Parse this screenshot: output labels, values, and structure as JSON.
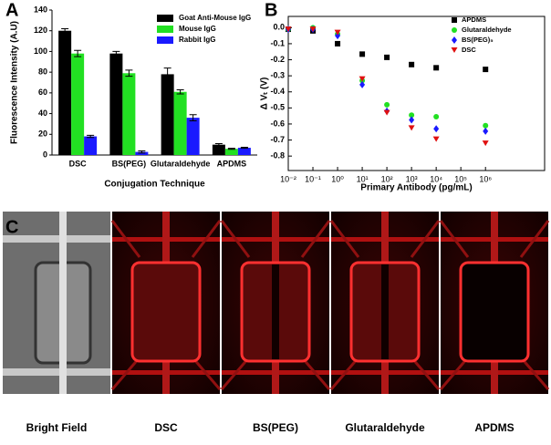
{
  "chart_data": [
    {
      "type": "bar",
      "panel_label": "A",
      "x_label": "Conjugation Technique",
      "y_label": "Fluorescence Intensity (A.U)",
      "categories": [
        "DSC",
        "BS(PEG)",
        "Glutaraldehyde",
        "APDMS"
      ],
      "series": [
        {
          "name": "Goat Anti-Mouse IgG",
          "color": "#000000",
          "values": [
            120,
            98,
            78,
            10
          ],
          "errors": [
            2,
            2,
            6,
            1
          ]
        },
        {
          "name": "Mouse IgG",
          "color": "#22e022",
          "values": [
            98,
            79,
            61,
            6
          ],
          "errors": [
            3,
            3,
            2,
            0.5
          ]
        },
        {
          "name": "Rabbit IgG",
          "color": "#1a1aff",
          "values": [
            18,
            3,
            36,
            7
          ],
          "errors": [
            1,
            1,
            3,
            0.5
          ]
        }
      ],
      "ylim": [
        0,
        140
      ],
      "yticks": [
        0,
        20,
        40,
        60,
        80,
        100,
        120,
        140
      ],
      "legend": "upper right"
    },
    {
      "type": "scatter",
      "panel_label": "B",
      "x_label": "Primary Antibody (pg/mL)",
      "y_label": "Δ Vₜ (V)",
      "x": [
        0.01,
        0.1,
        1,
        10,
        100,
        1000,
        10000,
        1000000
      ],
      "series": [
        {
          "name": "APDMS",
          "color": "#000000",
          "marker": "square",
          "values": [
            -0.01,
            -0.02,
            -0.1,
            -0.165,
            -0.185,
            -0.23,
            -0.25,
            -0.26
          ]
        },
        {
          "name": "Glutaraldehyde",
          "color": "#22e022",
          "marker": "circle",
          "values": [
            -0.01,
            0.0,
            -0.04,
            -0.33,
            -0.48,
            -0.545,
            -0.555,
            -0.61
          ]
        },
        {
          "name": "BS(PEG)₅",
          "color": "#1a1aff",
          "marker": "diamond",
          "values": [
            -0.01,
            -0.01,
            -0.05,
            -0.355,
            -0.52,
            -0.575,
            -0.63,
            -0.645
          ]
        },
        {
          "name": "DSC",
          "color": "#e01010",
          "marker": "triangle-down",
          "values": [
            -0.01,
            -0.01,
            -0.03,
            -0.32,
            -0.53,
            -0.625,
            -0.695,
            -0.72
          ]
        }
      ],
      "xscale": "log",
      "xlim": [
        0.01,
        250000000
      ],
      "xticks": [
        {
          "value": 0.01,
          "label": "10⁻²"
        },
        {
          "value": 0.1,
          "label": "10⁻¹"
        },
        {
          "value": 1,
          "label": "10⁰"
        },
        {
          "value": 10,
          "label": "10¹"
        },
        {
          "value": 100,
          "label": "10²"
        },
        {
          "value": 1000,
          "label": "10³"
        },
        {
          "value": 10000,
          "label": "10⁴"
        },
        {
          "value": 100000,
          "label": "10⁵"
        },
        {
          "value": 1000000,
          "label": "10⁶"
        }
      ],
      "ylim": [
        -0.89,
        0.07
      ],
      "yticks": [
        {
          "value": 0,
          "label": "0.0"
        },
        -0.1,
        -0.2,
        -0.3,
        -0.4,
        -0.5,
        -0.6,
        -0.7,
        -0.8
      ],
      "legend": "upper right"
    }
  ],
  "panel_c": {
    "panel_label": "C",
    "labels": [
      "Bright Field",
      "DSC",
      "BS(PEG)",
      "Glutaraldehyde",
      "APDMS"
    ]
  }
}
